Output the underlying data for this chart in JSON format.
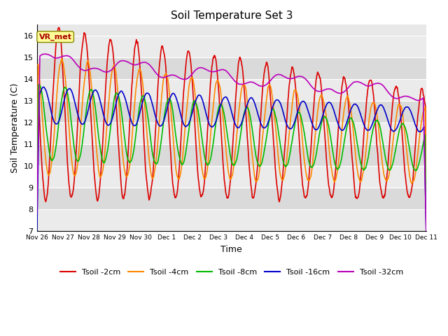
{
  "title": "Soil Temperature Set 3",
  "xlabel": "Time",
  "ylabel": "Soil Temperature (C)",
  "ylim": [
    7.0,
    16.5
  ],
  "yticks": [
    7.0,
    8.0,
    9.0,
    10.0,
    11.0,
    12.0,
    13.0,
    14.0,
    15.0,
    16.0
  ],
  "colors": {
    "tsoil_2cm": "#dd0000",
    "tsoil_4cm": "#ff8800",
    "tsoil_8cm": "#00bb00",
    "tsoil_16cm": "#0000cc",
    "tsoil_32cm": "#bb00bb"
  },
  "legend_labels": [
    "Tsoil -2cm",
    "Tsoil -4cm",
    "Tsoil -8cm",
    "Tsoil -16cm",
    "Tsoil -32cm"
  ],
  "annotation_text": "VR_met",
  "annotation_color": "#aa0000",
  "annotation_bg": "#ffff99",
  "band_color_light": "#f0f0f0",
  "band_color_dark": "#e0e0e0",
  "tick_labels": [
    "Nov 26",
    "Nov 27",
    "Nov 28",
    "Nov 29",
    "Nov 30",
    "Dec 1",
    "Dec 2",
    "Dec 3",
    "Dec 4",
    "Dec 5",
    "Dec 6",
    "Dec 7",
    "Dec 8",
    "Dec 9",
    "Dec 10",
    "Dec 11"
  ]
}
